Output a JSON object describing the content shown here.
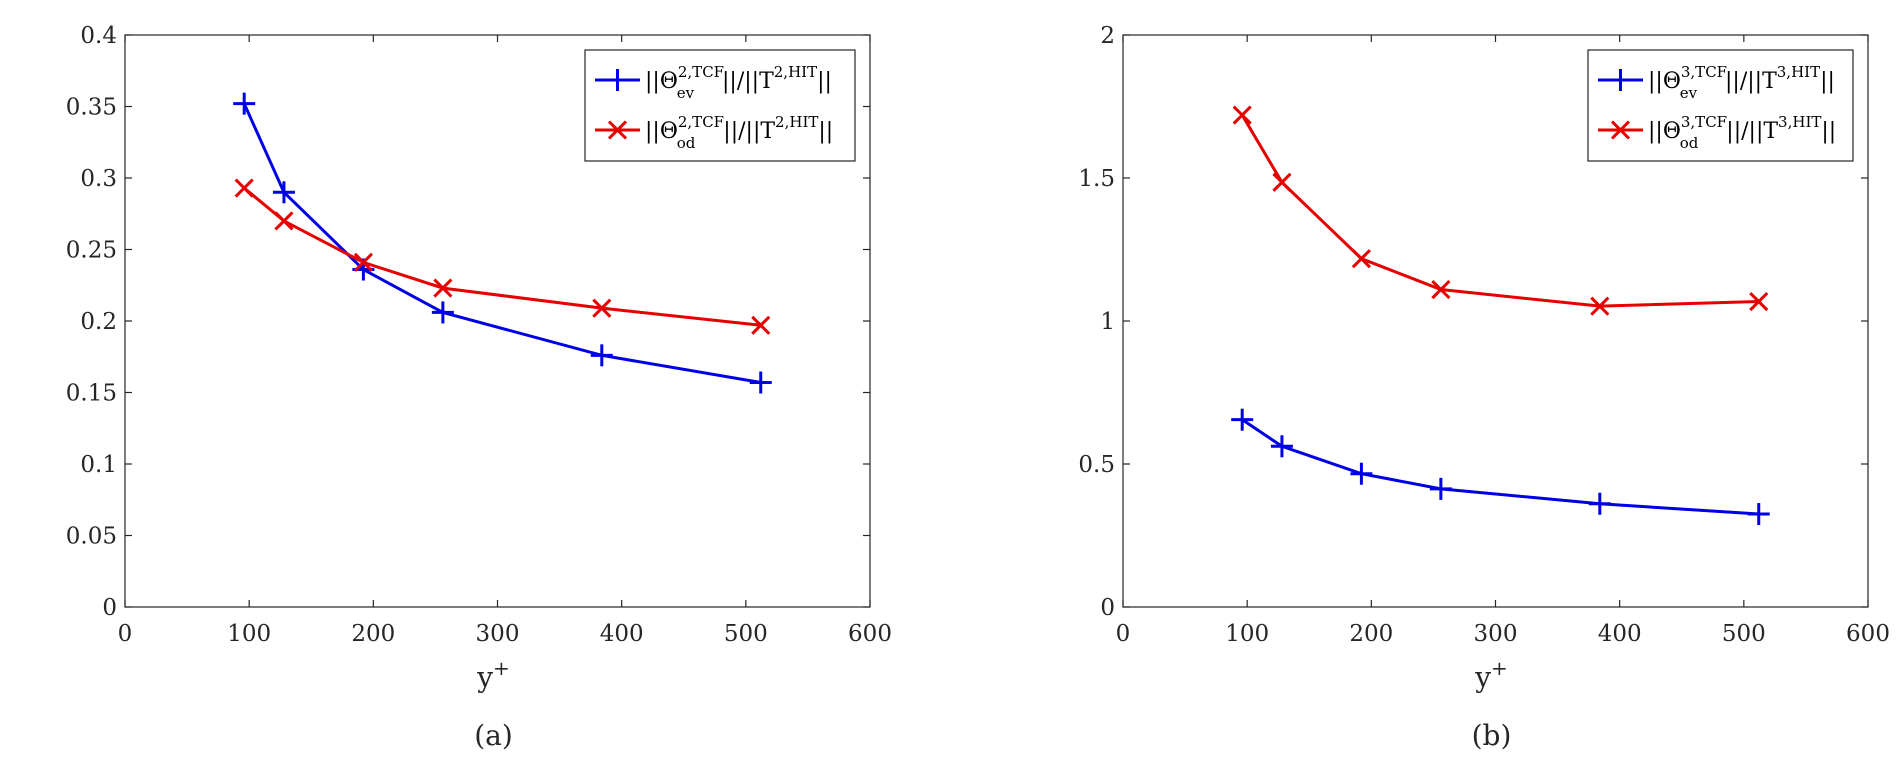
{
  "chart_data": [
    {
      "type": "line",
      "panel_label": "(a)",
      "xlabel": "y",
      "xlabel_sup": "+",
      "ylabel": "",
      "xlim": [
        0,
        600
      ],
      "ylim": [
        0,
        0.4
      ],
      "xticks": [
        0,
        100,
        200,
        300,
        400,
        500,
        600
      ],
      "yticks": [
        0,
        0.05,
        0.1,
        0.15,
        0.2,
        0.25,
        0.3,
        0.35,
        0.4
      ],
      "ytick_labels": [
        "0",
        "0.05",
        "0.1",
        "0.15",
        "0.2",
        "0.25",
        "0.3",
        "0.35",
        "0.4"
      ],
      "grid": false,
      "legend_position": "top-right",
      "x": [
        96,
        128,
        192,
        256,
        384,
        512
      ],
      "series": [
        {
          "color": "#0000e6",
          "marker": "plus",
          "values": [
            0.352,
            0.29,
            0.236,
            0.206,
            0.176,
            0.157
          ],
          "legend": {
            "norm_l": "||",
            "sym": "Θ",
            "sub": "ev",
            "sup": "2,TCF",
            "mid": "||/||",
            "den": "T",
            "den_sup": "2,HIT",
            "norm_r": "||"
          }
        },
        {
          "color": "#e60000",
          "marker": "x",
          "values": [
            0.293,
            0.27,
            0.241,
            0.223,
            0.209,
            0.197
          ],
          "legend": {
            "norm_l": "||",
            "sym": "Θ",
            "sub": "od",
            "sup": "2,TCF",
            "mid": "||/||",
            "den": "T",
            "den_sup": "2,HIT",
            "norm_r": "||"
          }
        }
      ]
    },
    {
      "type": "line",
      "panel_label": "(b)",
      "xlabel": "y",
      "xlabel_sup": "+",
      "ylabel": "",
      "xlim": [
        0,
        600
      ],
      "ylim": [
        0,
        2
      ],
      "xticks": [
        0,
        100,
        200,
        300,
        400,
        500,
        600
      ],
      "yticks": [
        0,
        0.5,
        1,
        1.5,
        2
      ],
      "ytick_labels": [
        "0",
        "0.5",
        "1",
        "1.5",
        "2"
      ],
      "grid": false,
      "legend_position": "top-right",
      "x": [
        96,
        128,
        192,
        256,
        384,
        512
      ],
      "series": [
        {
          "color": "#0000e6",
          "marker": "plus",
          "values": [
            0.655,
            0.562,
            0.466,
            0.413,
            0.361,
            0.325
          ],
          "legend": {
            "norm_l": "||",
            "sym": "Θ",
            "sub": "ev",
            "sup": "3,TCF",
            "mid": "||/||",
            "den": "T",
            "den_sup": "3,HIT",
            "norm_r": "||"
          }
        },
        {
          "color": "#e60000",
          "marker": "x",
          "values": [
            1.72,
            1.485,
            1.218,
            1.11,
            1.052,
            1.068
          ],
          "legend": {
            "norm_l": "||",
            "sym": "Θ",
            "sub": "od",
            "sup": "3,TCF",
            "mid": "||/||",
            "den": "T",
            "den_sup": "3,HIT",
            "norm_r": "||"
          }
        }
      ]
    }
  ]
}
